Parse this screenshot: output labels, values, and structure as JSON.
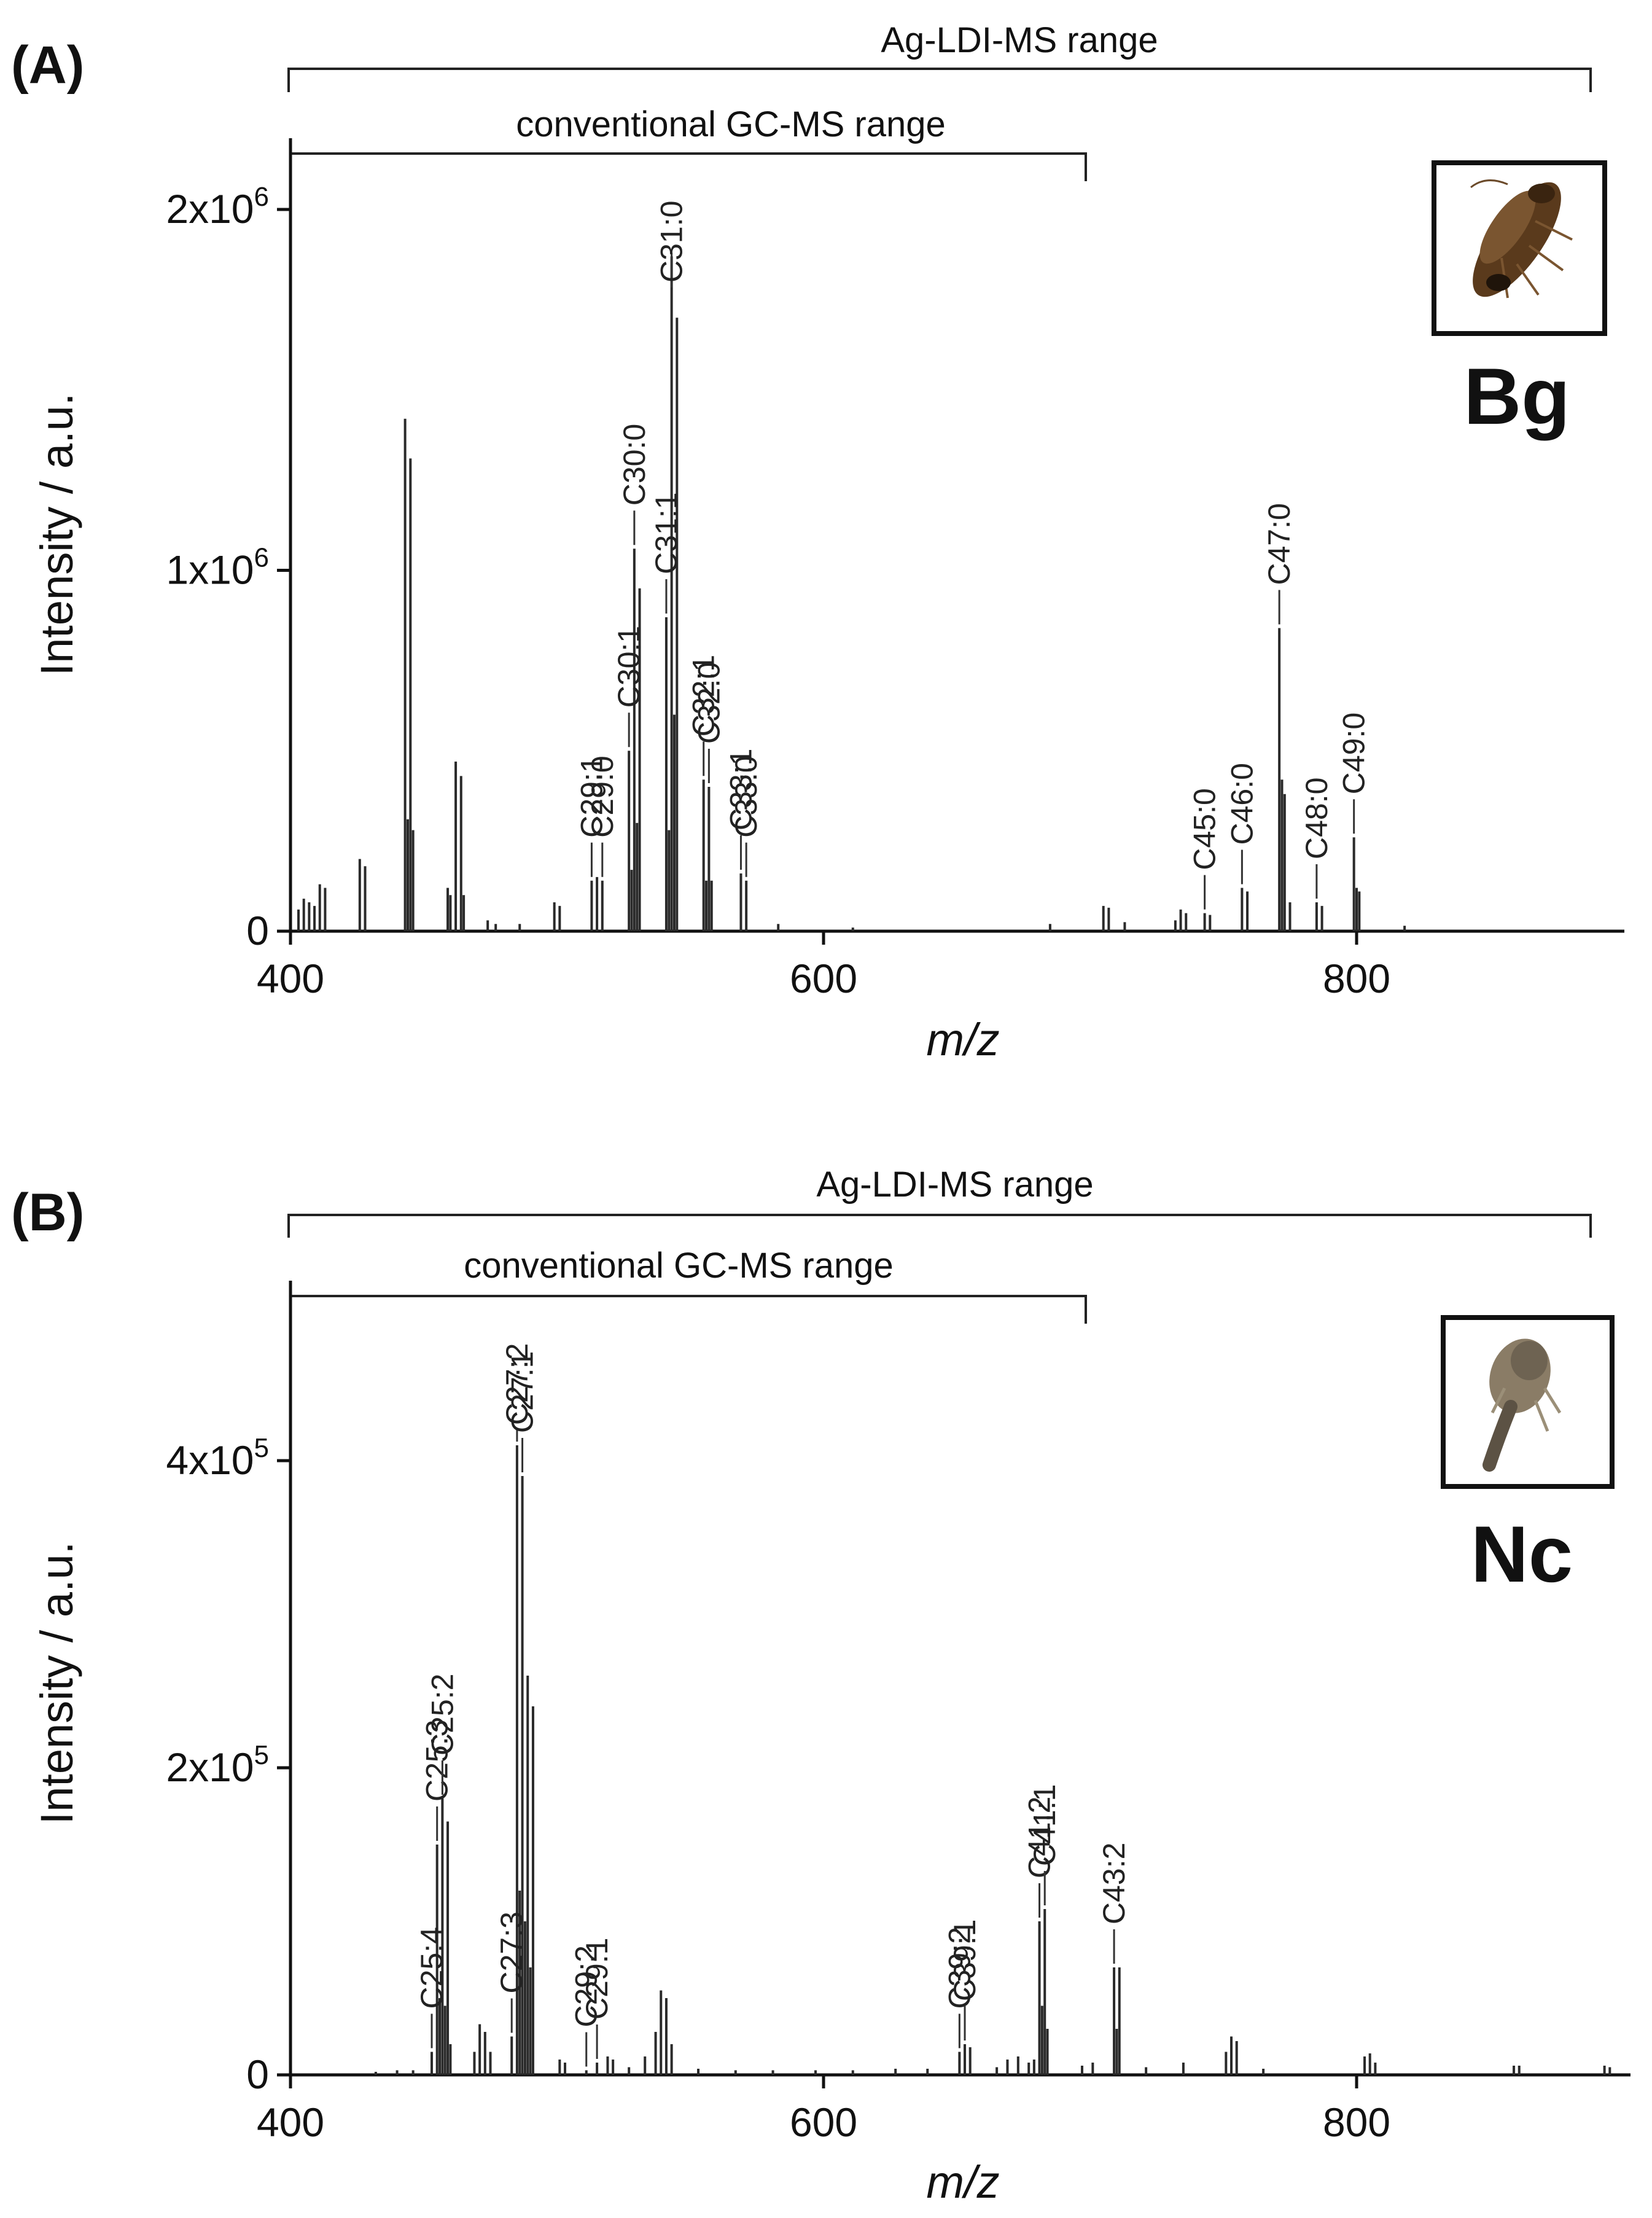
{
  "chart_data": [
    {
      "panel": "(A)",
      "species": "Bg",
      "type": "bar",
      "xlabel": "m/z",
      "ylabel": "Intensity / a.u.",
      "xlim": [
        400,
        900
      ],
      "ylim": [
        0,
        2200000
      ],
      "xticks": [
        {
          "value": 400,
          "label": "400"
        },
        {
          "value": 600,
          "label": "600"
        },
        {
          "value": 800,
          "label": "800"
        }
      ],
      "yticks": [
        {
          "value": 0,
          "mant": "0",
          "exp": ""
        },
        {
          "value": 1000000,
          "mant": "1x10",
          "exp": "6"
        },
        {
          "value": 2000000,
          "mant": "2x10",
          "exp": "6"
        }
      ],
      "ranges": [
        {
          "label": "Ag-LDI-MS range",
          "from": 400,
          "to": 890
        },
        {
          "label": "conventional GC-MS range",
          "from": 400,
          "to": 700
        }
      ],
      "peaks": [
        {
          "mz": 403,
          "value": 60000
        },
        {
          "mz": 405,
          "value": 90000
        },
        {
          "mz": 407,
          "value": 80000
        },
        {
          "mz": 409,
          "value": 70000
        },
        {
          "mz": 411,
          "value": 130000
        },
        {
          "mz": 413,
          "value": 120000
        },
        {
          "mz": 426,
          "value": 200000
        },
        {
          "mz": 428,
          "value": 180000
        },
        {
          "mz": 443,
          "value": 1420000
        },
        {
          "mz": 444,
          "value": 310000
        },
        {
          "mz": 445,
          "value": 1310000
        },
        {
          "mz": 446,
          "value": 280000
        },
        {
          "mz": 459,
          "value": 120000
        },
        {
          "mz": 460,
          "value": 100000
        },
        {
          "mz": 462,
          "value": 470000
        },
        {
          "mz": 464,
          "value": 430000
        },
        {
          "mz": 465,
          "value": 100000
        },
        {
          "mz": 474,
          "value": 30000
        },
        {
          "mz": 477,
          "value": 20000
        },
        {
          "mz": 486,
          "value": 20000
        },
        {
          "mz": 499,
          "value": 80000
        },
        {
          "mz": 501,
          "value": 70000
        },
        {
          "mz": 513,
          "value": 140000
        },
        {
          "mz": 515,
          "value": 150000
        },
        {
          "mz": 517,
          "value": 140000
        },
        {
          "mz": 527,
          "value": 500000
        },
        {
          "mz": 528,
          "value": 170000
        },
        {
          "mz": 529,
          "value": 1060000
        },
        {
          "mz": 530,
          "value": 300000
        },
        {
          "mz": 531,
          "value": 950000
        },
        {
          "mz": 541,
          "value": 870000
        },
        {
          "mz": 542,
          "value": 280000
        },
        {
          "mz": 543,
          "value": 1870000
        },
        {
          "mz": 544,
          "value": 600000
        },
        {
          "mz": 545,
          "value": 1700000
        },
        {
          "mz": 555,
          "value": 420000
        },
        {
          "mz": 556,
          "value": 140000
        },
        {
          "mz": 557,
          "value": 400000
        },
        {
          "mz": 558,
          "value": 140000
        },
        {
          "mz": 569,
          "value": 160000
        },
        {
          "mz": 571,
          "value": 140000
        },
        {
          "mz": 583,
          "value": 20000
        },
        {
          "mz": 611,
          "value": 10000
        },
        {
          "mz": 685,
          "value": 20000
        },
        {
          "mz": 705,
          "value": 70000
        },
        {
          "mz": 707,
          "value": 65000
        },
        {
          "mz": 713,
          "value": 25000
        },
        {
          "mz": 732,
          "value": 30000
        },
        {
          "mz": 734,
          "value": 60000
        },
        {
          "mz": 736,
          "value": 50000
        },
        {
          "mz": 743,
          "value": 50000
        },
        {
          "mz": 745,
          "value": 45000
        },
        {
          "mz": 757,
          "value": 120000
        },
        {
          "mz": 759,
          "value": 110000
        },
        {
          "mz": 771,
          "value": 840000
        },
        {
          "mz": 772,
          "value": 420000
        },
        {
          "mz": 773,
          "value": 380000
        },
        {
          "mz": 775,
          "value": 80000
        },
        {
          "mz": 785,
          "value": 80000
        },
        {
          "mz": 787,
          "value": 70000
        },
        {
          "mz": 799,
          "value": 260000
        },
        {
          "mz": 800,
          "value": 120000
        },
        {
          "mz": 801,
          "value": 110000
        },
        {
          "mz": 818,
          "value": 15000
        }
      ],
      "annotations": [
        {
          "label": "C29:1",
          "mz": 513,
          "peak": 140000
        },
        {
          "label": "C29:0",
          "mz": 517,
          "peak": 140000
        },
        {
          "label": "C30:1",
          "mz": 527,
          "peak": 500000
        },
        {
          "label": "C30:0",
          "mz": 529,
          "peak": 1060000
        },
        {
          "label": "C31:1",
          "mz": 541,
          "peak": 870000
        },
        {
          "label": "C31:0",
          "mz": 543,
          "peak": 1870000
        },
        {
          "label": "C32:1",
          "mz": 555,
          "peak": 420000
        },
        {
          "label": "C32:0",
          "mz": 557,
          "peak": 400000
        },
        {
          "label": "C33:1",
          "mz": 569,
          "peak": 160000
        },
        {
          "label": "C33:0",
          "mz": 571,
          "peak": 140000
        },
        {
          "label": "C45:0",
          "mz": 743,
          "peak": 50000
        },
        {
          "label": "C46:0",
          "mz": 757,
          "peak": 120000
        },
        {
          "label": "C47:0",
          "mz": 771,
          "peak": 840000
        },
        {
          "label": "C48:0",
          "mz": 785,
          "peak": 80000
        },
        {
          "label": "C49:0",
          "mz": 799,
          "peak": 260000
        }
      ]
    },
    {
      "panel": "(B)",
      "species": "Nc",
      "type": "bar",
      "xlabel": "m/z",
      "ylabel": "Intensity / a.u.",
      "xlim": [
        400,
        900
      ],
      "ylim": [
        0,
        500000
      ],
      "xticks": [
        {
          "value": 400,
          "label": "400"
        },
        {
          "value": 600,
          "label": "600"
        },
        {
          "value": 800,
          "label": "800"
        }
      ],
      "yticks": [
        {
          "value": 0,
          "mant": "0",
          "exp": ""
        },
        {
          "value": 200000,
          "mant": "2x10",
          "exp": "5"
        },
        {
          "value": 400000,
          "mant": "4x10",
          "exp": "5"
        }
      ],
      "ranges": [
        {
          "label": "Ag-LDI-MS range",
          "from": 400,
          "to": 890
        },
        {
          "label": "conventional GC-MS range",
          "from": 400,
          "to": 700
        }
      ],
      "peaks": [
        {
          "mz": 432,
          "value": 2000
        },
        {
          "mz": 440,
          "value": 3000
        },
        {
          "mz": 446,
          "value": 3000
        },
        {
          "mz": 453,
          "value": 15000
        },
        {
          "mz": 455,
          "value": 150000
        },
        {
          "mz": 456,
          "value": 50000
        },
        {
          "mz": 457,
          "value": 180000
        },
        {
          "mz": 458,
          "value": 45000
        },
        {
          "mz": 459,
          "value": 165000
        },
        {
          "mz": 460,
          "value": 20000
        },
        {
          "mz": 469,
          "value": 15000
        },
        {
          "mz": 471,
          "value": 33000
        },
        {
          "mz": 473,
          "value": 28000
        },
        {
          "mz": 475,
          "value": 15000
        },
        {
          "mz": 483,
          "value": 25000
        },
        {
          "mz": 485,
          "value": 410000
        },
        {
          "mz": 486,
          "value": 120000
        },
        {
          "mz": 487,
          "value": 390000
        },
        {
          "mz": 488,
          "value": 100000
        },
        {
          "mz": 489,
          "value": 260000
        },
        {
          "mz": 490,
          "value": 70000
        },
        {
          "mz": 491,
          "value": 240000
        },
        {
          "mz": 501,
          "value": 10000
        },
        {
          "mz": 503,
          "value": 8000
        },
        {
          "mz": 511,
          "value": 3000
        },
        {
          "mz": 515,
          "value": 8000
        },
        {
          "mz": 519,
          "value": 12000
        },
        {
          "mz": 521,
          "value": 10000
        },
        {
          "mz": 527,
          "value": 5000
        },
        {
          "mz": 533,
          "value": 12000
        },
        {
          "mz": 537,
          "value": 28000
        },
        {
          "mz": 539,
          "value": 55000
        },
        {
          "mz": 541,
          "value": 50000
        },
        {
          "mz": 543,
          "value": 20000
        },
        {
          "mz": 553,
          "value": 4000
        },
        {
          "mz": 567,
          "value": 3000
        },
        {
          "mz": 581,
          "value": 3000
        },
        {
          "mz": 597,
          "value": 3000
        },
        {
          "mz": 611,
          "value": 3000
        },
        {
          "mz": 627,
          "value": 4000
        },
        {
          "mz": 639,
          "value": 4000
        },
        {
          "mz": 651,
          "value": 15000
        },
        {
          "mz": 653,
          "value": 20000
        },
        {
          "mz": 655,
          "value": 18000
        },
        {
          "mz": 665,
          "value": 5000
        },
        {
          "mz": 669,
          "value": 10000
        },
        {
          "mz": 673,
          "value": 12000
        },
        {
          "mz": 677,
          "value": 8000
        },
        {
          "mz": 679,
          "value": 10000
        },
        {
          "mz": 681,
          "value": 100000
        },
        {
          "mz": 682,
          "value": 45000
        },
        {
          "mz": 683,
          "value": 108000
        },
        {
          "mz": 684,
          "value": 30000
        },
        {
          "mz": 697,
          "value": 6000
        },
        {
          "mz": 701,
          "value": 8000
        },
        {
          "mz": 709,
          "value": 70000
        },
        {
          "mz": 710,
          "value": 30000
        },
        {
          "mz": 711,
          "value": 70000
        },
        {
          "mz": 721,
          "value": 5000
        },
        {
          "mz": 735,
          "value": 8000
        },
        {
          "mz": 751,
          "value": 15000
        },
        {
          "mz": 753,
          "value": 25000
        },
        {
          "mz": 755,
          "value": 22000
        },
        {
          "mz": 765,
          "value": 4000
        },
        {
          "mz": 803,
          "value": 12000
        },
        {
          "mz": 805,
          "value": 14000
        },
        {
          "mz": 807,
          "value": 8000
        },
        {
          "mz": 859,
          "value": 6000
        },
        {
          "mz": 861,
          "value": 6000
        },
        {
          "mz": 893,
          "value": 6000
        },
        {
          "mz": 895,
          "value": 5000
        }
      ],
      "annotations": [
        {
          "label": "C25:4",
          "mz": 453,
          "peak": 15000
        },
        {
          "label": "C25:3",
          "mz": 455,
          "peak": 150000
        },
        {
          "label": "C25:2",
          "mz": 457,
          "peak": 180000
        },
        {
          "label": "C27:3",
          "mz": 483,
          "peak": 25000
        },
        {
          "label": "C27:2",
          "mz": 485,
          "peak": 410000
        },
        {
          "label": "C27:1",
          "mz": 487,
          "peak": 390000
        },
        {
          "label": "C29:2",
          "mz": 511,
          "peak": 3000
        },
        {
          "label": "C29:1",
          "mz": 515,
          "peak": 8000
        },
        {
          "label": "C39:2",
          "mz": 651,
          "peak": 15000
        },
        {
          "label": "C39:1",
          "mz": 653,
          "peak": 20000
        },
        {
          "label": "C41:2",
          "mz": 681,
          "peak": 100000
        },
        {
          "label": "C41:1",
          "mz": 683,
          "peak": 108000
        },
        {
          "label": "C43:2",
          "mz": 709,
          "peak": 70000
        }
      ]
    }
  ]
}
